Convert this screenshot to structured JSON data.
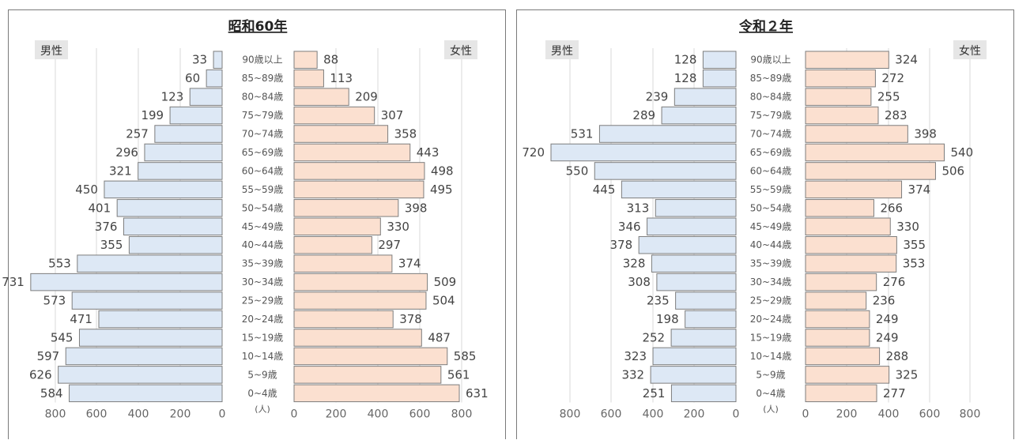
{
  "chart_data": [
    {
      "type": "bar",
      "title": "昭和60年",
      "categories": [
        "90歳以上",
        "85~89歳",
        "80~84歳",
        "75~79歳",
        "70~74歳",
        "65~69歳",
        "60~64歳",
        "55~59歳",
        "50~54歳",
        "45~49歳",
        "40~44歳",
        "35~39歳",
        "30~34歳",
        "25~29歳",
        "20~24歳",
        "15~19歳",
        "10~14歳",
        "5~9歳",
        "0~4歳"
      ],
      "series": [
        {
          "name": "男性",
          "values": [
            33,
            60,
            123,
            199,
            257,
            296,
            321,
            450,
            401,
            376,
            355,
            553,
            731,
            573,
            471,
            545,
            597,
            626,
            584
          ]
        },
        {
          "name": "女性",
          "values": [
            88,
            113,
            209,
            307,
            358,
            443,
            498,
            495,
            398,
            330,
            297,
            374,
            509,
            504,
            378,
            487,
            585,
            561,
            631
          ]
        }
      ],
      "xlim": [
        0,
        800
      ],
      "xticks_left": [
        "800",
        "600",
        "400",
        "200",
        "0"
      ],
      "xticks_right": [
        "0",
        "200",
        "400",
        "600",
        "800"
      ],
      "unit": "(人)"
    },
    {
      "type": "bar",
      "title": "令和２年",
      "categories": [
        "90歳以上",
        "85~89歳",
        "80~84歳",
        "75~79歳",
        "70~74歳",
        "65~69歳",
        "60~64歳",
        "55~59歳",
        "50~54歳",
        "45~49歳",
        "40~44歳",
        "35~39歳",
        "30~34歳",
        "25~29歳",
        "20~24歳",
        "15~19歳",
        "10~14歳",
        "5~9歳",
        "0~4歳"
      ],
      "series": [
        {
          "name": "男性",
          "values": [
            128,
            128,
            239,
            289,
            531,
            720,
            550,
            445,
            313,
            346,
            378,
            328,
            308,
            235,
            198,
            252,
            323,
            332,
            251
          ]
        },
        {
          "name": "女性",
          "values": [
            324,
            272,
            255,
            283,
            398,
            540,
            506,
            374,
            266,
            330,
            355,
            353,
            276,
            236,
            249,
            249,
            288,
            325,
            277
          ]
        }
      ],
      "xlim": [
        0,
        800
      ],
      "xticks_left": [
        "800",
        "600",
        "400",
        "200",
        "0"
      ],
      "xticks_right": [
        "0",
        "200",
        "400",
        "600",
        "800"
      ],
      "unit": "(人)"
    }
  ],
  "colors": {
    "male_fill": "#dde8f5",
    "female_fill": "#fbe0d0",
    "bar_stroke": "#7d7d7d",
    "grid": "#d9d9d9",
    "label_box": "#e6e6e6",
    "text": "#444444"
  }
}
